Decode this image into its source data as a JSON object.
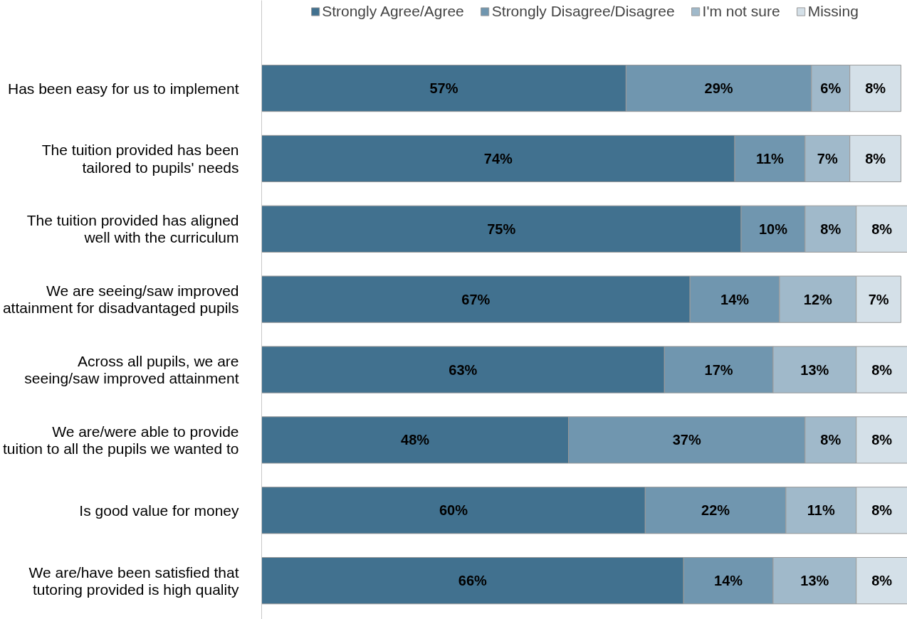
{
  "chart_data": {
    "type": "bar",
    "orientation": "horizontal",
    "stacked": true,
    "legend": "top",
    "grid": false,
    "tick_labels": "y",
    "categories": [
      "Has been easy for us to implement",
      "The tuition provided has been\ntailored to pupils' needs",
      "The tuition provided has aligned\nwell with the curriculum",
      "We are seeing/saw improved\nattainment for disadvantaged pupils",
      "Across all pupils, we are\nseeing/saw improved attainment",
      "We are/were able to provide\ntuition to all the pupils we wanted to",
      "Is good value for money",
      "We are/have been satisfied that\ntutoring provided is high quality"
    ],
    "series": [
      {
        "name": "Strongly Agree/Agree",
        "color": "#41718f",
        "values": [
          57,
          74,
          75,
          67,
          63,
          48,
          60,
          66
        ],
        "value_labels": [
          "57%",
          "74%",
          "75%",
          "67%",
          "63%",
          "48%",
          "60%",
          "66%"
        ]
      },
      {
        "name": "Strongly Disagree/Disagree",
        "color": "#7096af",
        "values": [
          29,
          11,
          10,
          14,
          17,
          37,
          22,
          14
        ],
        "value_labels": [
          "29%",
          "11%",
          "10%",
          "14%",
          "17%",
          "37%",
          "22%",
          "14%"
        ]
      },
      {
        "name": "I'm not sure",
        "color": "#a0b9ca",
        "values": [
          6,
          7,
          8,
          12,
          13,
          8,
          11,
          13
        ],
        "value_labels": [
          "6%",
          "7%",
          "8%",
          "12%",
          "13%",
          "8%",
          "11%",
          "13%"
        ]
      },
      {
        "name": "Missing",
        "color": "#d4e0e8",
        "values": [
          8,
          8,
          8,
          7,
          8,
          8,
          8,
          8
        ],
        "value_labels": [
          "8%",
          "8%",
          "8%",
          "7%",
          "8%",
          "8%",
          "8%",
          "8%"
        ]
      }
    ]
  }
}
